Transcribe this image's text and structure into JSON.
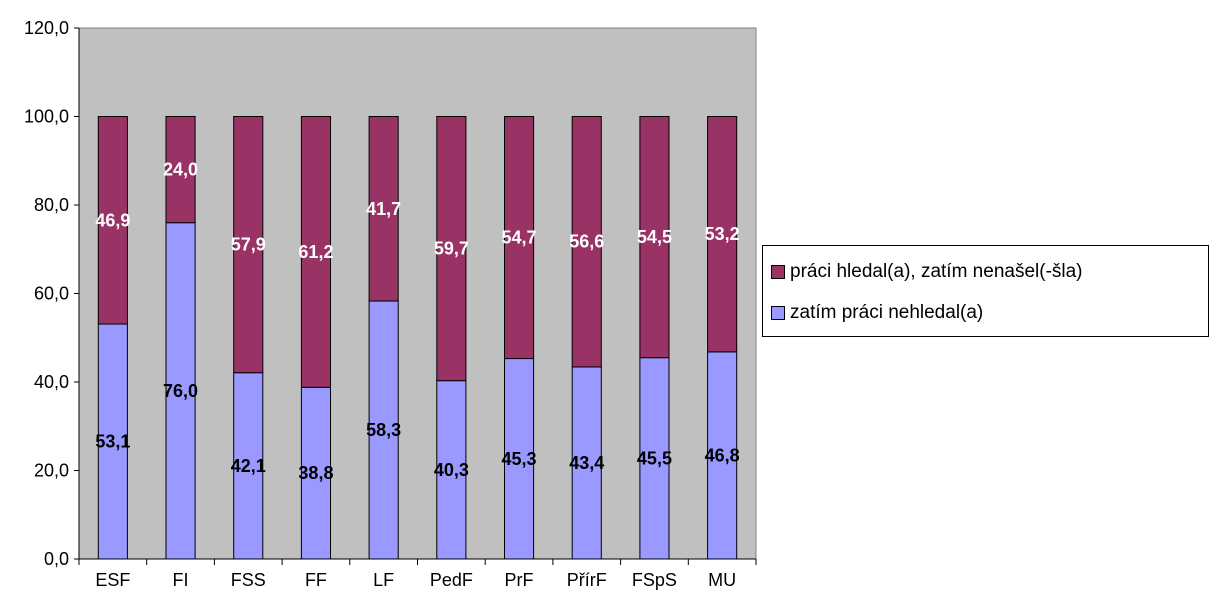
{
  "chart_data": {
    "type": "bar",
    "stacked": true,
    "categories": [
      "ESF",
      "FI",
      "FSS",
      "FF",
      "LF",
      "PedF",
      "PrF",
      "PřírF",
      "FSpS",
      "MU"
    ],
    "series": [
      {
        "name": "zatím práci nehledal(a)",
        "color": "#9999FF",
        "values": [
          53.1,
          76.0,
          42.1,
          38.8,
          58.3,
          40.3,
          45.3,
          43.4,
          45.5,
          46.8
        ],
        "labels": [
          "53,1",
          "76,0",
          "42,1",
          "38,8",
          "58,3",
          "40,3",
          "45,3",
          "43,4",
          "45,5",
          "46,8"
        ],
        "label_color": "#000000"
      },
      {
        "name": "práci hledal(a), zatím nenašel(-šla)",
        "color": "#993366",
        "values": [
          46.9,
          24.0,
          57.9,
          61.2,
          41.7,
          59.7,
          54.7,
          56.6,
          54.5,
          53.2
        ],
        "labels": [
          "46,9",
          "24,0",
          "57,9",
          "61,2",
          "41,7",
          "59,7",
          "54,7",
          "56,6",
          "54,5",
          "53,2"
        ],
        "label_color": "#FFFFFF"
      }
    ],
    "ylim": [
      0,
      120
    ],
    "yticks": [
      0,
      20,
      40,
      60,
      80,
      100,
      120
    ],
    "ytick_labels": [
      "0,0",
      "20,0",
      "40,0",
      "60,0",
      "80,0",
      "100,0",
      "120,0"
    ],
    "plot_background": "#C0C0C0",
    "grid": false,
    "legend_position": "right"
  },
  "legend": {
    "items": [
      {
        "label": "práci hledal(a), zatím nenašel(-šla)",
        "color": "#993366"
      },
      {
        "label": "zatím práci nehledal(a)",
        "color": "#9999FF"
      }
    ]
  }
}
